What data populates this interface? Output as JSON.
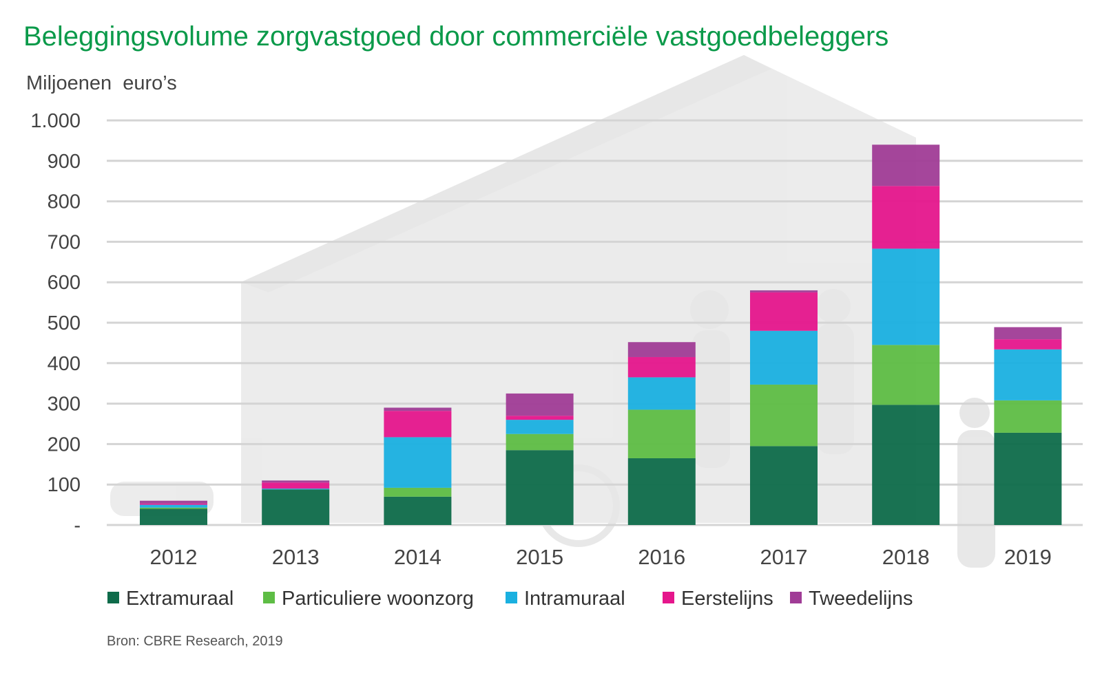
{
  "chart_data": {
    "type": "bar",
    "stacked": true,
    "title": "Beleggingsvolume zorgvastgoed door commerciële vastgoedbeleggers",
    "ylabel": "Miljoenen  euro’s",
    "xlabel": "",
    "ylim": [
      0,
      1000
    ],
    "yticks": [
      0,
      100,
      200,
      300,
      400,
      500,
      600,
      700,
      800,
      900,
      1000
    ],
    "ytick_labels": [
      "-",
      "100",
      "200",
      "300",
      "400",
      "500",
      "600",
      "700",
      "800",
      "900",
      "1.000"
    ],
    "grid": true,
    "legend_position": "bottom",
    "categories": [
      "2012",
      "2013",
      "2014",
      "2015",
      "2016",
      "2017",
      "2018",
      "2019"
    ],
    "series": [
      {
        "name": "Extramuraal",
        "color": "#0e6b4a",
        "values": [
          40,
          88,
          70,
          185,
          165,
          195,
          297,
          228
        ]
      },
      {
        "name": "Particuliere woonzorg",
        "color": "#5ebd45",
        "values": [
          3,
          0,
          22,
          40,
          120,
          152,
          148,
          80
        ]
      },
      {
        "name": "Intramuraal",
        "color": "#1ab0e0",
        "values": [
          7,
          2,
          125,
          35,
          80,
          133,
          238,
          126
        ]
      },
      {
        "name": "Eerstelijns",
        "color": "#e5168c",
        "values": [
          3,
          15,
          65,
          10,
          50,
          95,
          155,
          25
        ]
      },
      {
        "name": "Tweedelijns",
        "color": "#a03c96",
        "values": [
          7,
          5,
          8,
          55,
          37,
          5,
          102,
          30
        ]
      }
    ],
    "source": "Bron: CBRE Research, 2019"
  }
}
